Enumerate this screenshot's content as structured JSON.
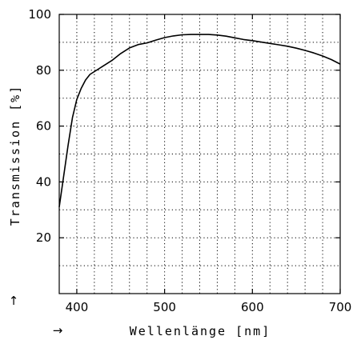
{
  "chart_data": {
    "type": "line",
    "xlabel": "Wellenlänge [nm]",
    "ylabel": "Transmission [%]",
    "xlim": [
      380,
      700
    ],
    "ylim": [
      0,
      100
    ],
    "x_ticks": [
      400,
      500,
      600,
      700
    ],
    "y_ticks": [
      20,
      40,
      60,
      80,
      100
    ],
    "x_tick_labels": [
      "400",
      "500",
      "600",
      "700"
    ],
    "y_tick_labels": [
      "20",
      "40",
      "60",
      "80",
      "100"
    ],
    "grid": true,
    "grid_style": "dotted",
    "x_grid_step": 20,
    "y_grid_step": 10,
    "x_axis_arrow": "→",
    "y_axis_arrow": "↑",
    "series": [
      {
        "color": "#000000",
        "x": [
          380,
          385,
          390,
          395,
          400,
          405,
          410,
          415,
          420,
          430,
          440,
          450,
          460,
          470,
          480,
          490,
          500,
          510,
          520,
          530,
          540,
          550,
          560,
          570,
          580,
          590,
          600,
          610,
          620,
          630,
          640,
          650,
          660,
          670,
          680,
          690,
          700
        ],
        "y": [
          31,
          42,
          53,
          63,
          69.5,
          73.5,
          76.5,
          78.5,
          79.5,
          81.5,
          83.5,
          86,
          88,
          89.2,
          89.8,
          90.8,
          91.7,
          92.3,
          92.7,
          92.8,
          92.8,
          92.8,
          92.6,
          92.2,
          91.6,
          91,
          90.6,
          90.1,
          89.6,
          89.1,
          88.6,
          87.9,
          87.1,
          86.2,
          85.1,
          83.8,
          82.2
        ]
      }
    ]
  }
}
